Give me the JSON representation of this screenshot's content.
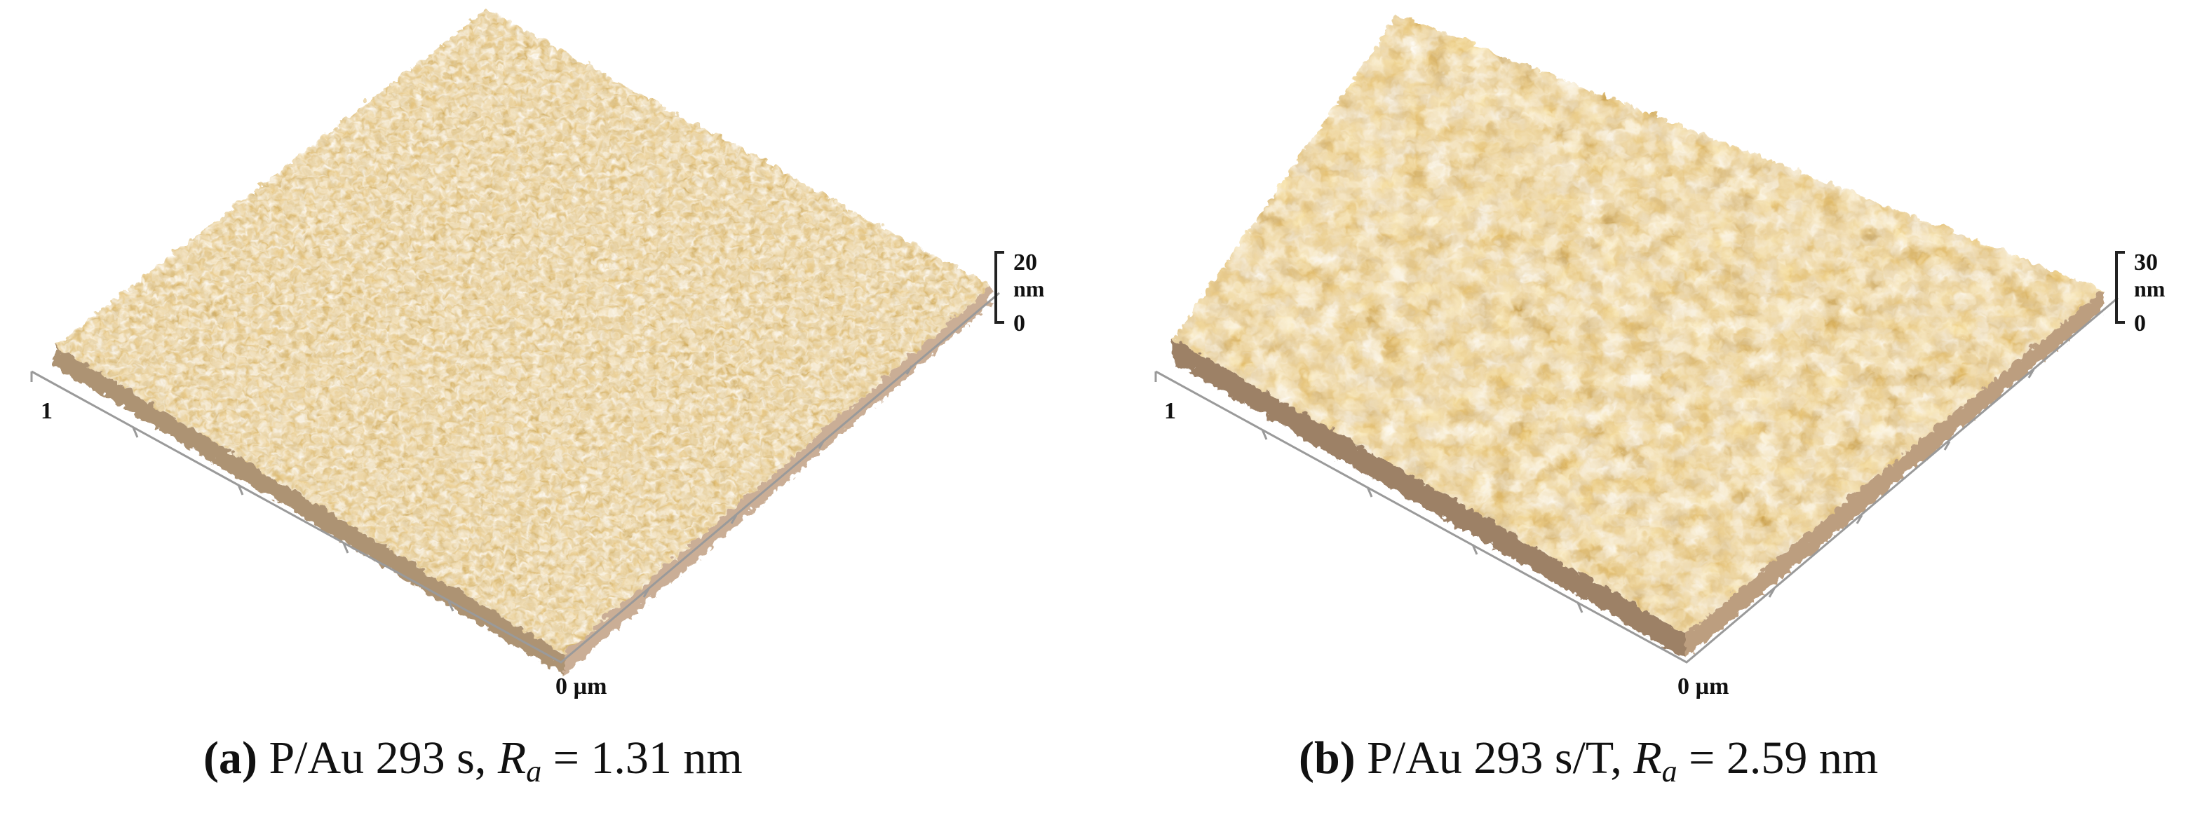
{
  "panels": [
    {
      "id": "a",
      "surface": {
        "base_color": "#b5701c",
        "peak_color": "#f1d48d",
        "shadow_color": "#6a3808",
        "texture": "fine dense grains"
      },
      "corner_label": "1",
      "origin_label": "0 µm",
      "z_scale": {
        "max": "20",
        "unit": "nm",
        "min": "0"
      },
      "caption": {
        "tag": "(a)",
        "text": "P/Au 293 s, ",
        "var": "R",
        "sub": "a",
        "value": " = 1.31 nm"
      }
    },
    {
      "id": "b",
      "surface": {
        "base_color": "#b36a14",
        "peak_color": "#f2cf7e",
        "shadow_color": "#5a2c04",
        "texture": "coarse rounded grains"
      },
      "corner_label": "1",
      "origin_label": "0 µm",
      "z_scale": {
        "max": "30",
        "unit": "nm",
        "min": "0"
      },
      "caption": {
        "tag": "(b)",
        "text": "P/Au 293 s/T, ",
        "var": "R",
        "sub": "a",
        "value": " = 2.59 nm"
      }
    }
  ]
}
